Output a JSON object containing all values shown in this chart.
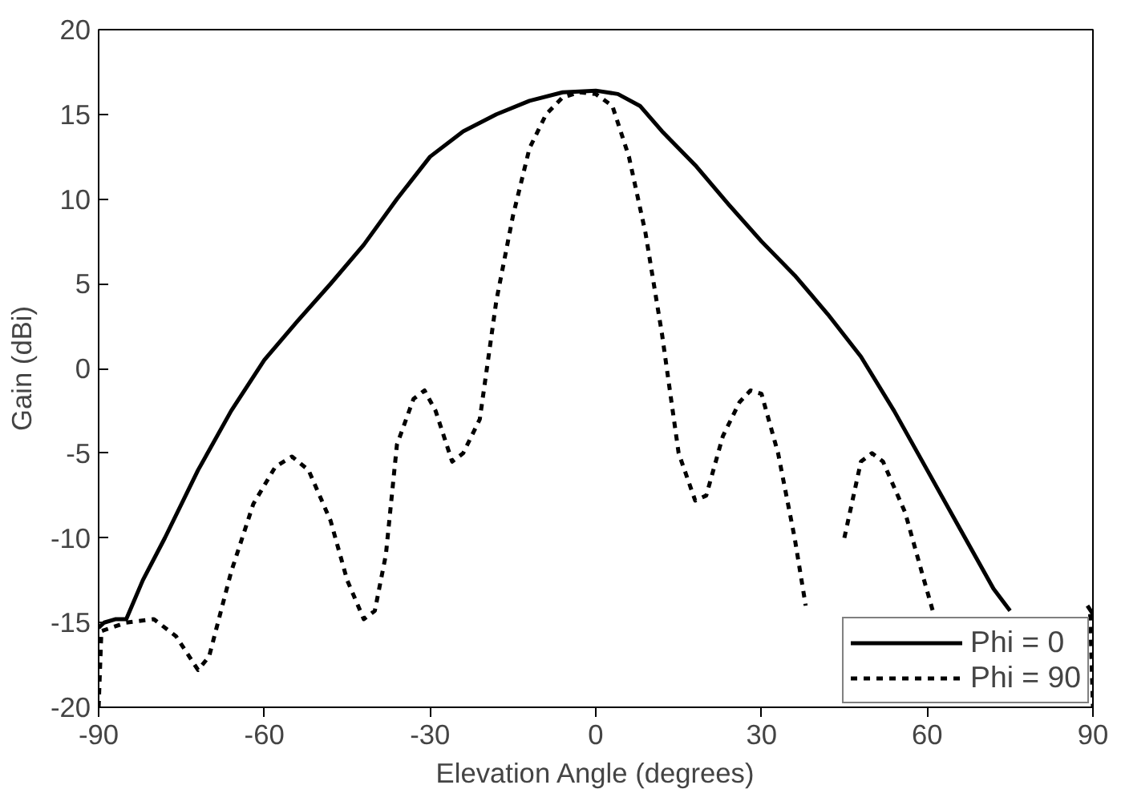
{
  "chart_data": {
    "type": "line",
    "xlabel": "Elevation Angle (degrees)",
    "ylabel": "Gain (dBi)",
    "xlim": [
      -90,
      90
    ],
    "xticks": [
      -90,
      -60,
      -30,
      0,
      30,
      60,
      90
    ],
    "ylim": [
      -20,
      20
    ],
    "yticks": [
      -20,
      -15,
      -10,
      -5,
      0,
      5,
      10,
      15,
      20
    ],
    "grid": false,
    "legend": "bottom right",
    "series": [
      {
        "name": "Phi = 0",
        "color": "#000000",
        "line_style": "solid",
        "x": [
          -90,
          -89,
          -87,
          -85,
          -82,
          -78,
          -72,
          -66,
          -60,
          -54,
          -48,
          -42,
          -36,
          -30,
          -24,
          -18,
          -12,
          -6,
          0,
          4,
          8,
          12,
          18,
          24,
          30,
          36,
          42,
          48,
          54,
          60,
          66,
          72,
          75,
          80,
          85,
          89,
          90
        ],
        "values": [
          -15.3,
          -15,
          -14.8,
          -14.8,
          -12.5,
          -10,
          -6,
          -2.5,
          0.5,
          2.8,
          5,
          7.3,
          10,
          12.5,
          14,
          15,
          15.8,
          16.3,
          16.4,
          16.2,
          15.5,
          14,
          12,
          9.7,
          7.5,
          5.5,
          3.2,
          0.7,
          -2.5,
          -6,
          -9.5,
          -13,
          -14.3,
          null,
          null,
          -14,
          -14.5
        ]
      },
      {
        "name": "Phi = 90",
        "color": "#000000",
        "line_style": "dashed",
        "x": [
          -90,
          -89.5,
          -85,
          -80,
          -76,
          -72,
          -70,
          -66,
          -62,
          -58,
          -55,
          -52,
          -48,
          -45,
          -42,
          -40,
          -38,
          -36,
          -33,
          -31,
          -29,
          -26,
          -24,
          -21,
          -18,
          -15,
          -12,
          -9,
          -6,
          -3,
          0,
          3,
          6,
          9,
          12,
          15,
          18,
          20,
          23,
          26,
          28,
          30,
          33,
          36,
          38,
          42,
          45,
          48,
          50,
          52,
          56,
          59,
          61,
          70,
          89.5,
          90
        ],
        "values": [
          -20,
          -15.5,
          -15,
          -14.8,
          -15.8,
          -17.8,
          -17,
          -12,
          -8,
          -5.8,
          -5.2,
          -6,
          -9,
          -12.5,
          -14.8,
          -14.3,
          -11,
          -4.5,
          -1.8,
          -1.3,
          -2.5,
          -5.5,
          -5,
          -3,
          4,
          9,
          13,
          15,
          16,
          16.3,
          16.2,
          15.5,
          12.5,
          8,
          2,
          -5,
          -7.8,
          -7.5,
          -4,
          -2,
          -1.3,
          -1.5,
          -5,
          -10,
          -14,
          null,
          -10,
          -5.5,
          -5,
          -5.5,
          -8.5,
          -12,
          -14.3,
          null,
          -14.5,
          -20
        ]
      }
    ]
  }
}
